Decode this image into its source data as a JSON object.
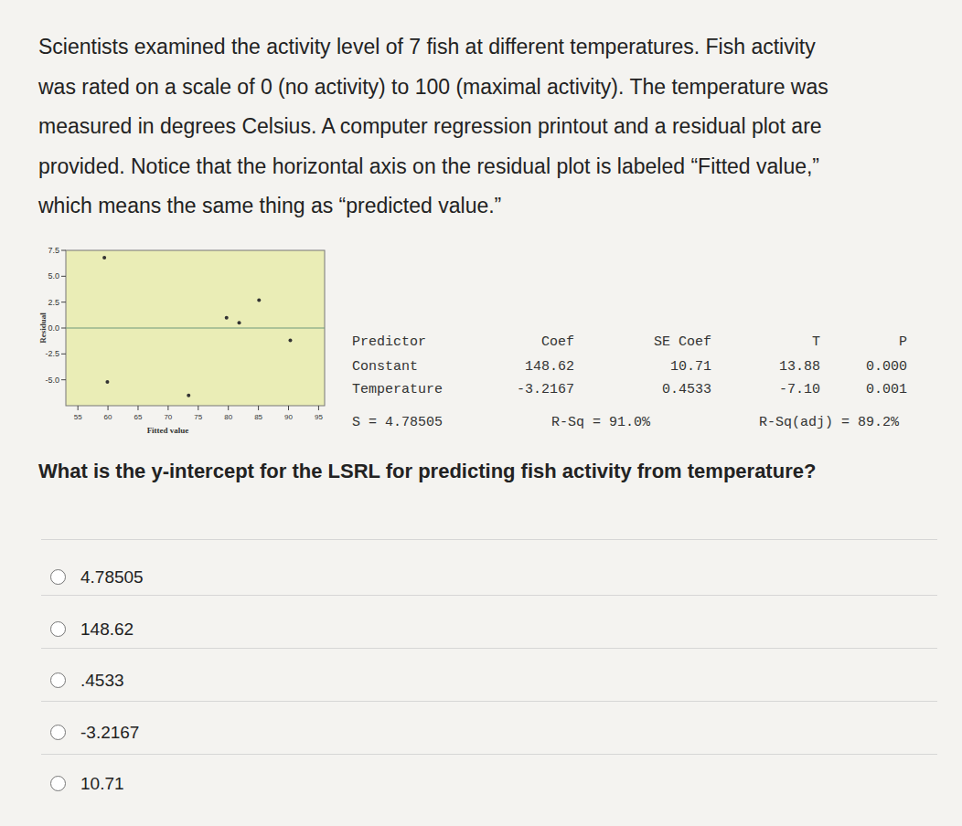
{
  "paragraph": [
    "Scientists examined the activity level of 7 fish at different temperatures. Fish activity",
    "was rated on a scale of 0 (no activity) to 100 (maximal activity). The temperature was",
    "measured in degrees Celsius. A computer regression printout and a residual plot are",
    "provided. Notice that the horizontal axis on the residual plot is labeled “Fitted value,”",
    "which means the same thing as “predicted value.”"
  ],
  "chart_data": {
    "type": "scatter",
    "x_label": "Fitted value",
    "y_label": "Residual",
    "x": [
      59.4,
      85.1,
      79.7,
      81.8,
      90.3,
      59.9,
      73.4
    ],
    "values": [
      6.8,
      2.7,
      1.0,
      0.5,
      -1.2,
      -5.2,
      -6.5
    ],
    "hline": 0,
    "xlim": [
      53,
      96
    ],
    "ylim": [
      -7.5,
      7.5
    ],
    "xticks": [
      55,
      60,
      65,
      70,
      75,
      80,
      85,
      90,
      95
    ],
    "yticks": [
      {
        "value": 7.5,
        "label": "7.5"
      },
      {
        "value": 5,
        "label": "5.0"
      },
      {
        "value": 2.5,
        "label": "2.5"
      },
      {
        "value": 0,
        "label": "0.0"
      },
      {
        "value": -2.5,
        "label": "-2.5"
      },
      {
        "value": -5,
        "label": "-5.0"
      }
    ],
    "color": "#333333",
    "grid": false
  },
  "table": {
    "header": [
      "Predictor",
      "Coef",
      "SE Coef",
      "T",
      "P"
    ],
    "rows": [
      [
        "Constant",
        "148.62",
        "10.71",
        "13.88",
        "0.000"
      ],
      [
        "Temperature",
        "-3.2167",
        "0.4533",
        "-7.10",
        "0.001"
      ]
    ],
    "summary": [
      "S = 4.78505",
      "R-Sq = 91.0%",
      "R-Sq(adj) = 89.2%"
    ]
  },
  "question": "What is the y-intercept for the LSRL for predicting fish activity from temperature?",
  "options": [
    "4.78505",
    "148.62",
    ".4533",
    "-3.2167",
    "10.71"
  ]
}
